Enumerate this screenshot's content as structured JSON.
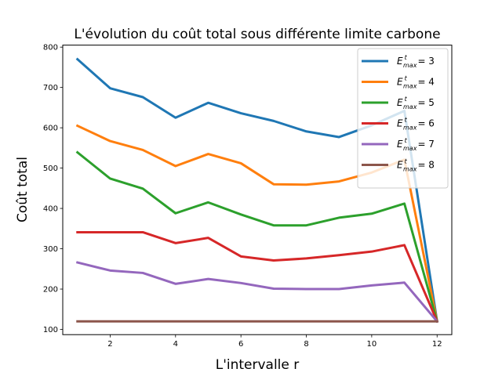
{
  "chart_data": {
    "type": "line",
    "title": "L'évolution du coût total sous différente limite carbone",
    "xlabel": "L'intervalle r",
    "ylabel": "Coût total",
    "xlim": [
      0.55,
      12.45
    ],
    "ylim": [
      87,
      805
    ],
    "xticks": [
      2,
      4,
      6,
      8,
      10,
      12
    ],
    "yticks": [
      100,
      200,
      300,
      400,
      500,
      600,
      700,
      800
    ],
    "grid": false,
    "legend_position": "top-right",
    "x": [
      1,
      2,
      3,
      4,
      5,
      6,
      7,
      8,
      9,
      10,
      11,
      12
    ],
    "series": [
      {
        "name": "E^t_max = 3",
        "legend_base": "E",
        "legend_sup": "t",
        "legend_sub": "max",
        "legend_value": "= 3",
        "color": "#1f77b4",
        "values": [
          770,
          698,
          676,
          625,
          662,
          636,
          617,
          591,
          577,
          606,
          642,
          120
        ]
      },
      {
        "name": "E^t_max = 4",
        "legend_base": "E",
        "legend_sup": "t",
        "legend_sub": "max",
        "legend_value": "= 4",
        "color": "#ff7f0e",
        "values": [
          605,
          567,
          545,
          505,
          535,
          512,
          460,
          459,
          467,
          489,
          521,
          120
        ]
      },
      {
        "name": "E^t_max = 5",
        "legend_base": "E",
        "legend_sup": "t",
        "legend_sub": "max",
        "legend_value": "= 5",
        "color": "#2ca02c",
        "values": [
          539,
          474,
          449,
          388,
          415,
          385,
          358,
          358,
          377,
          387,
          412,
          120
        ]
      },
      {
        "name": "E^t_max = 6",
        "legend_base": "E",
        "legend_sup": "t",
        "legend_sub": "max",
        "legend_value": "= 6",
        "color": "#d62728",
        "values": [
          341,
          341,
          341,
          314,
          327,
          281,
          271,
          276,
          284,
          293,
          309,
          120
        ]
      },
      {
        "name": "E^t_max = 7",
        "legend_base": "E",
        "legend_sup": "t",
        "legend_sub": "max",
        "legend_value": "= 7",
        "color": "#9467bd",
        "values": [
          266,
          246,
          240,
          213,
          225,
          215,
          201,
          200,
          200,
          209,
          216,
          120
        ]
      },
      {
        "name": "E^t_max = 8",
        "legend_base": "E",
        "legend_sup": "t",
        "legend_sub": "max",
        "legend_value": "= 8",
        "color": "#8c564b",
        "values": [
          120,
          120,
          120,
          120,
          120,
          120,
          120,
          120,
          120,
          120,
          120,
          120
        ]
      }
    ]
  }
}
